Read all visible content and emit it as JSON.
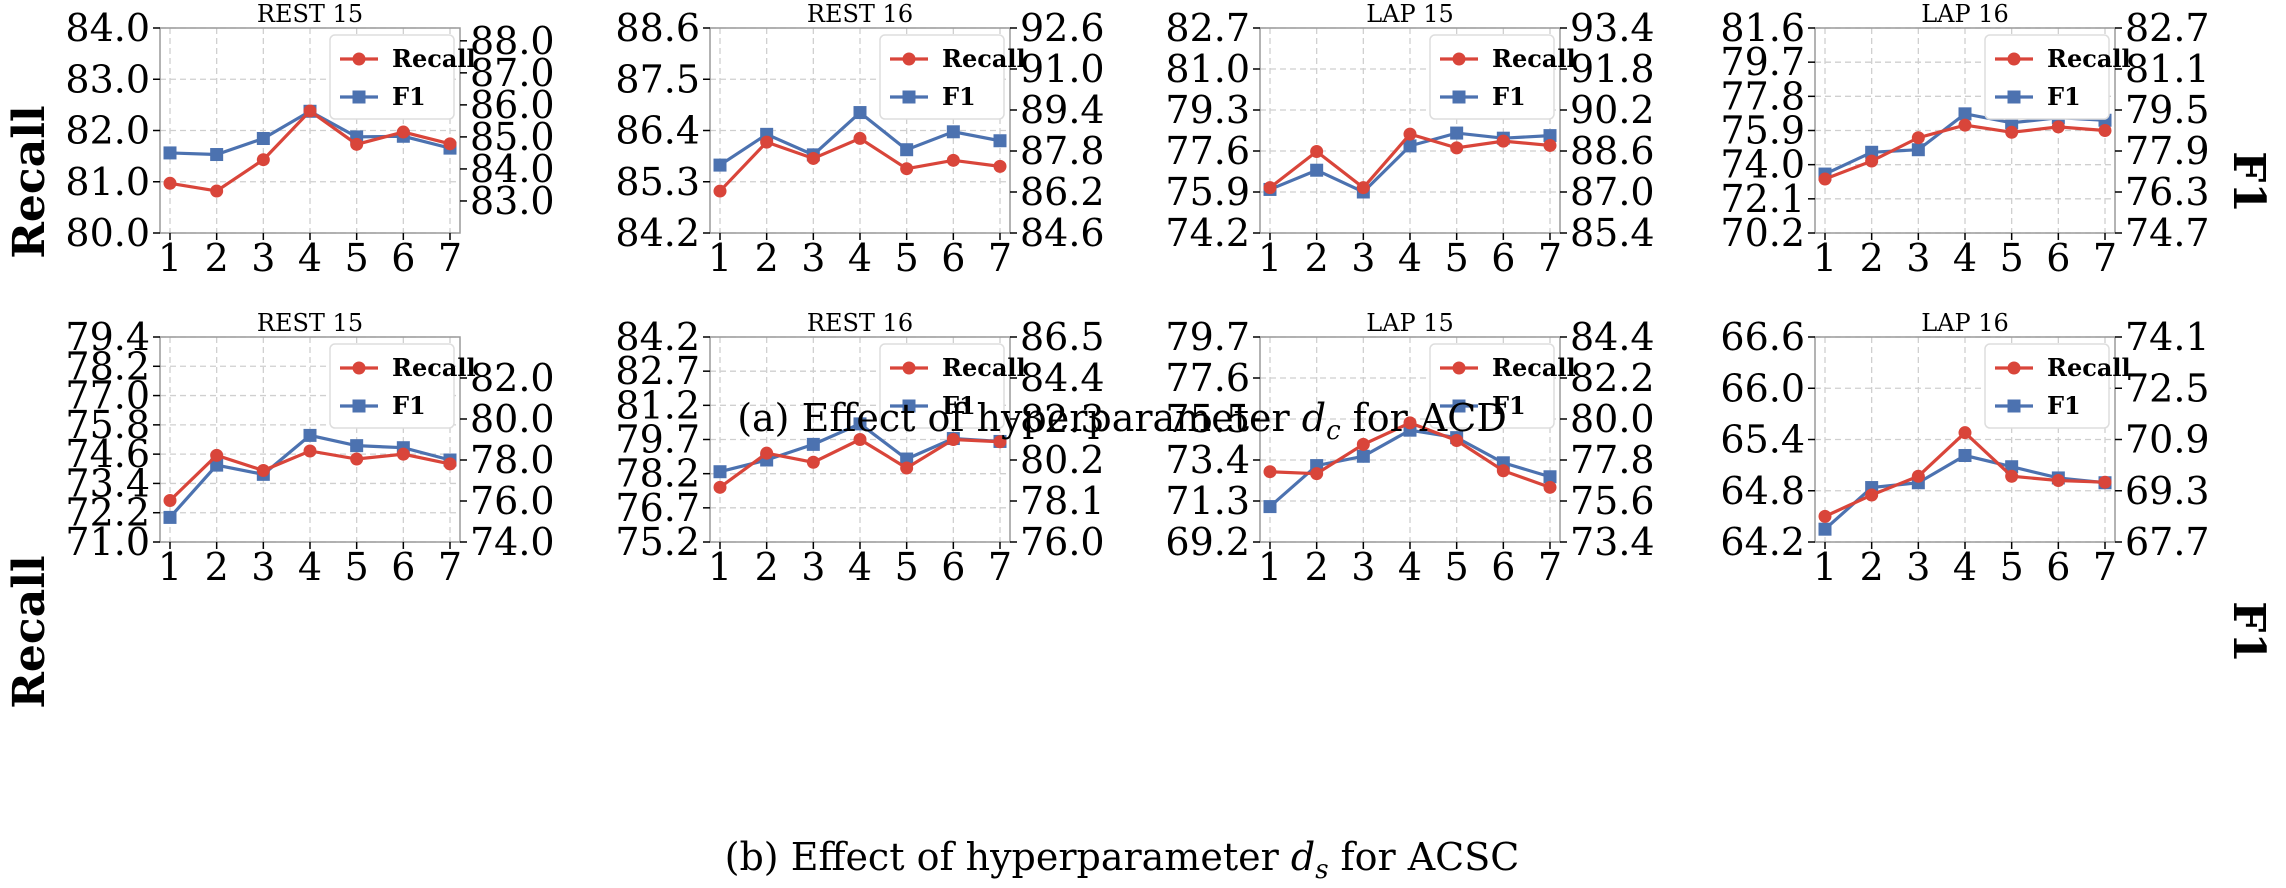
{
  "figure": {
    "caption_a": "(a) Effect of hyperparameter",
    "caption_a_sym": "d",
    "caption_a_sub": "c",
    "caption_a_tail": "for ACD",
    "caption_b": "(b) Effect of hyperparameter",
    "caption_b_sym": "d",
    "caption_b_sub": "s",
    "caption_b_tail": "for ACSC",
    "left_axis_label": "Recall",
    "right_axis_label": "F1"
  },
  "colors": {
    "recall": "#d9453a",
    "f1": "#4c72b0"
  },
  "chart_data": [
    {
      "type": "line",
      "title": "REST 15",
      "x": [
        1,
        2,
        3,
        4,
        5,
        6,
        7
      ],
      "legend": [
        "Recall",
        "F1"
      ],
      "legend_position": "top-right",
      "left_ylim": [
        80.0,
        84.0
      ],
      "left_ticks": [
        "80.0",
        "81.0",
        "82.0",
        "83.0",
        "84.0"
      ],
      "right_ylim": [
        82.0,
        88.4
      ],
      "right_ticks": [
        "83.0",
        "84.0",
        "85.0",
        "86.0",
        "87.0",
        "88.0"
      ],
      "series": [
        {
          "name": "Recall",
          "axis": "left",
          "values": [
            80.97,
            80.82,
            81.43,
            82.38,
            81.73,
            81.97,
            81.74
          ]
        },
        {
          "name": "F1",
          "axis": "right",
          "values": [
            84.5,
            84.45,
            84.95,
            85.8,
            85.0,
            85.02,
            84.65
          ]
        }
      ]
    },
    {
      "type": "line",
      "title": "REST 16",
      "x": [
        1,
        2,
        3,
        4,
        5,
        6,
        7
      ],
      "legend": [
        "Recall",
        "F1"
      ],
      "legend_position": "top-right",
      "left_ylim": [
        84.2,
        88.6
      ],
      "left_ticks": [
        "84.2",
        "85.3",
        "86.4",
        "87.5",
        "88.6"
      ],
      "right_ylim": [
        84.6,
        92.6
      ],
      "right_ticks": [
        "84.6",
        "86.2",
        "87.8",
        "89.4",
        "91.0",
        "92.6"
      ],
      "series": [
        {
          "name": "Recall",
          "axis": "left",
          "values": [
            85.1,
            86.15,
            85.8,
            86.23,
            85.58,
            85.76,
            85.63
          ]
        },
        {
          "name": "F1",
          "axis": "right",
          "values": [
            87.25,
            88.45,
            87.65,
            89.3,
            87.85,
            88.55,
            88.2
          ]
        }
      ]
    },
    {
      "type": "line",
      "title": "LAP 15",
      "x": [
        1,
        2,
        3,
        4,
        5,
        6,
        7
      ],
      "legend": [
        "Recall",
        "F1"
      ],
      "legend_position": "top-right",
      "left_ylim": [
        74.2,
        82.7
      ],
      "left_ticks": [
        "74.2",
        "75.9",
        "77.6",
        "79.3",
        "81.0",
        "82.7"
      ],
      "right_ylim": [
        85.4,
        93.4
      ],
      "right_ticks": [
        "85.4",
        "87.0",
        "88.6",
        "90.2",
        "91.8",
        "93.4"
      ],
      "series": [
        {
          "name": "Recall",
          "axis": "left",
          "values": [
            76.08,
            77.58,
            76.08,
            78.3,
            77.73,
            78.01,
            77.83
          ]
        },
        {
          "name": "F1",
          "axis": "right",
          "values": [
            87.1,
            87.85,
            87.0,
            88.8,
            89.3,
            89.1,
            89.2
          ]
        }
      ]
    },
    {
      "type": "line",
      "title": "LAP 16",
      "x": [
        1,
        2,
        3,
        4,
        5,
        6,
        7
      ],
      "legend": [
        "Recall",
        "F1"
      ],
      "legend_position": "top-right",
      "left_ylim": [
        70.2,
        81.6
      ],
      "left_ticks": [
        "70.2",
        "72.1",
        "74.0",
        "75.9",
        "77.8",
        "79.7",
        "81.6"
      ],
      "right_ylim": [
        74.7,
        82.7
      ],
      "right_ticks": [
        "74.7",
        "76.3",
        "77.9",
        "79.5",
        "81.1",
        "82.7"
      ],
      "series": [
        {
          "name": "Recall",
          "axis": "left",
          "values": [
            73.2,
            74.2,
            75.5,
            76.2,
            75.8,
            76.1,
            75.9
          ]
        },
        {
          "name": "F1",
          "axis": "right",
          "values": [
            77.0,
            77.85,
            77.95,
            79.35,
            79.0,
            79.2,
            79.1
          ]
        }
      ]
    },
    {
      "type": "line",
      "title": "REST 15",
      "x": [
        1,
        2,
        3,
        4,
        5,
        6,
        7
      ],
      "legend": [
        "Recall",
        "F1"
      ],
      "legend_position": "top-right",
      "left_ylim": [
        71.0,
        79.4
      ],
      "left_ticks": [
        "71.0",
        "72.2",
        "73.4",
        "74.6",
        "75.8",
        "77.0",
        "78.2",
        "79.4"
      ],
      "right_ylim": [
        74.0,
        84.0
      ],
      "right_ticks": [
        "74.0",
        "76.0",
        "78.0",
        "80.0",
        "82.0"
      ],
      "series": [
        {
          "name": "Recall",
          "axis": "left",
          "values": [
            72.7,
            74.55,
            73.93,
            74.73,
            74.4,
            74.6,
            74.2
          ]
        },
        {
          "name": "F1",
          "axis": "right",
          "values": [
            75.2,
            77.75,
            77.3,
            79.2,
            78.7,
            78.6,
            78.0
          ]
        }
      ]
    },
    {
      "type": "line",
      "title": "REST 16",
      "x": [
        1,
        2,
        3,
        4,
        5,
        6,
        7
      ],
      "legend": [
        "Recall",
        "F1"
      ],
      "legend_position": "top-right",
      "left_ylim": [
        75.2,
        84.2
      ],
      "left_ticks": [
        "75.2",
        "76.7",
        "78.2",
        "79.7",
        "81.2",
        "82.7",
        "84.2"
      ],
      "right_ylim": [
        76.0,
        86.5
      ],
      "right_ticks": [
        "76.0",
        "78.1",
        "80.2",
        "82.3",
        "84.4",
        "86.5"
      ],
      "series": [
        {
          "name": "Recall",
          "axis": "left",
          "values": [
            77.6,
            79.1,
            78.7,
            79.7,
            78.45,
            79.7,
            79.6
          ]
        },
        {
          "name": "F1",
          "axis": "right",
          "values": [
            79.6,
            80.2,
            81.0,
            82.05,
            80.25,
            81.3,
            81.15
          ]
        }
      ]
    },
    {
      "type": "line",
      "title": "LAP 15",
      "x": [
        1,
        2,
        3,
        4,
        5,
        6,
        7
      ],
      "legend": [
        "Recall",
        "F1"
      ],
      "legend_position": "top-right",
      "left_ylim": [
        69.2,
        79.7
      ],
      "left_ticks": [
        "69.2",
        "71.3",
        "73.4",
        "75.5",
        "77.6",
        "79.7"
      ],
      "right_ylim": [
        73.4,
        84.4
      ],
      "right_ticks": [
        "73.4",
        "75.6",
        "77.8",
        "80.0",
        "82.2",
        "84.4"
      ],
      "series": [
        {
          "name": "Recall",
          "axis": "left",
          "values": [
            72.8,
            72.7,
            74.2,
            75.3,
            74.4,
            72.85,
            72.0
          ]
        },
        {
          "name": "F1",
          "axis": "right",
          "values": [
            75.3,
            77.5,
            78.0,
            79.4,
            79.0,
            77.65,
            76.9
          ]
        }
      ]
    },
    {
      "type": "line",
      "title": "LAP 16",
      "x": [
        1,
        2,
        3,
        4,
        5,
        6,
        7
      ],
      "legend": [
        "Recall",
        "F1"
      ],
      "legend_position": "top-right",
      "left_ylim": [
        64.2,
        66.6
      ],
      "left_ticks": [
        "64.2",
        "64.8",
        "65.4",
        "66.0",
        "66.6"
      ],
      "right_ylim": [
        67.7,
        74.1
      ],
      "right_ticks": [
        "67.7",
        "69.3",
        "70.9",
        "72.5",
        "74.1"
      ],
      "series": [
        {
          "name": "Recall",
          "axis": "left",
          "values": [
            64.5,
            64.75,
            64.97,
            65.48,
            64.97,
            64.92,
            64.9
          ]
        },
        {
          "name": "F1",
          "axis": "right",
          "values": [
            68.1,
            69.4,
            69.55,
            70.4,
            70.05,
            69.7,
            69.55
          ]
        }
      ]
    }
  ]
}
